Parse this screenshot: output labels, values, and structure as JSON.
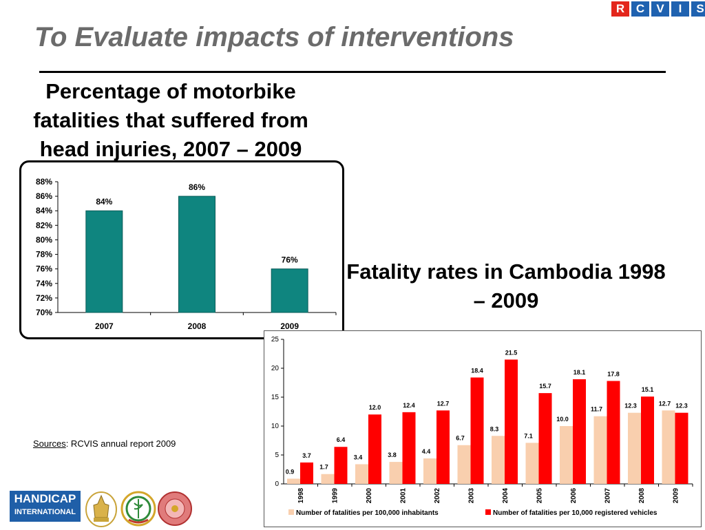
{
  "slide": {
    "title": "To Evaluate impacts of interventions",
    "logo_letters": [
      "R",
      "C",
      "V",
      "I",
      "S"
    ],
    "sources_label": "Sources",
    "sources_text": ": RCVIS annual report 2009",
    "partner_logos": [
      "HANDICAP",
      "INTERNATIONAL"
    ]
  },
  "colors": {
    "teal_bar": "#0f857f",
    "light_bar": "#f9cfae",
    "red_bar": "#ff0000",
    "title_grey": "#6b6b6b",
    "rcvis_red": "#e3261c",
    "rcvis_blue": "#1f62b0",
    "handicap_blue": "#1f5fa8"
  },
  "chart_data": [
    {
      "type": "bar",
      "heading": "Percentage of motorbike fatalities that suffered from head injuries, 2007 – 2009",
      "categories": [
        "2007",
        "2008",
        "2009"
      ],
      "values": [
        84,
        86,
        76
      ],
      "data_labels": [
        "84%",
        "86%",
        "76%"
      ],
      "ylim": [
        70,
        88
      ],
      "y_ticks": [
        "70%",
        "72%",
        "74%",
        "76%",
        "78%",
        "80%",
        "82%",
        "84%",
        "86%",
        "88%"
      ],
      "grid": false,
      "legend": "none"
    },
    {
      "type": "bar",
      "heading": "Fatality rates in Cambodia 1998 – 2009",
      "categories": [
        "1998",
        "1999",
        "2000",
        "2001",
        "2002",
        "2003",
        "2004",
        "2005",
        "2006",
        "2007",
        "2008",
        "2009"
      ],
      "series": [
        {
          "name": "Number of fatalities per 100,000 inhabitants",
          "values": [
            0.9,
            1.7,
            3.4,
            3.8,
            4.4,
            6.7,
            8.3,
            7.1,
            10.0,
            11.7,
            12.3,
            12.7
          ],
          "labels": [
            "0.9",
            "1.7",
            "3.4",
            "3.8",
            "4.4",
            "6.7",
            "8.3",
            "7.1",
            "10.0",
            "11.7",
            "12.3",
            "12.7"
          ]
        },
        {
          "name": "Number of fatalities per 10,000 registered vehicles",
          "values": [
            3.7,
            6.4,
            12.0,
            12.4,
            12.7,
            18.4,
            21.5,
            15.7,
            18.1,
            17.8,
            15.1,
            12.3
          ],
          "labels": [
            "3.7",
            "6.4",
            "12.0",
            "12.4",
            "12.7",
            "18.4",
            "21.5",
            "15.7",
            "18.1",
            "17.8",
            "15.1",
            "12.3"
          ]
        }
      ],
      "ylim": [
        0,
        25
      ],
      "y_ticks": [
        "0",
        "5",
        "10",
        "15",
        "20",
        "25"
      ],
      "grid": false,
      "legend": "bottom"
    }
  ]
}
